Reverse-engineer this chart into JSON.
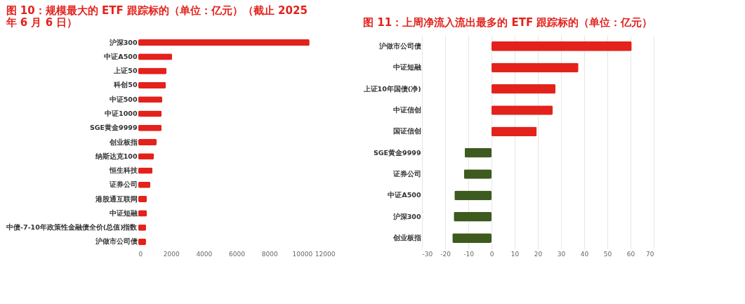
{
  "chart_data": [
    {
      "type": "bar",
      "orientation": "horizontal",
      "title": "图 10：规模最大的 ETF 跟踪标的（单位：亿元）（截止 2025 年 6 月 6 日）",
      "categories": [
        "沪深300",
        "中证A500",
        "上证50",
        "科创50",
        "中证500",
        "中证1000",
        "SGE黄金9999",
        "创业板指",
        "纳斯达克100",
        "恒生科技",
        "证券公司",
        "港股通互联网",
        "中证短融",
        "中债-7-10年政策性金融债全价(总值)指数",
        "沪做市公司债"
      ],
      "values": [
        10450,
        2060,
        1720,
        1680,
        1460,
        1420,
        1420,
        1120,
        950,
        860,
        730,
        520,
        520,
        470,
        470
      ],
      "color": "#e3221c",
      "xlim": [
        0,
        12000
      ],
      "xticks": [
        0,
        2000,
        4000,
        6000,
        8000,
        10000,
        12000
      ],
      "grid": false
    },
    {
      "type": "bar",
      "orientation": "horizontal",
      "title": "图 11：上周净流入流出最多的 ETF 跟踪标的（单位：亿元）",
      "categories": [
        "沪做市公司债",
        "中证短融",
        "上证10年国债(净)",
        "中证信创",
        "国证信创",
        "SGE黄金9999",
        "证券公司",
        "中证A500",
        "沪深300",
        "创业板指"
      ],
      "values": [
        60.5,
        37.5,
        27.6,
        26.4,
        19.5,
        -11.6,
        -11.9,
        -16.0,
        -16.3,
        -16.9
      ],
      "colors": [
        "#e3221c",
        "#e3221c",
        "#e3221c",
        "#e3221c",
        "#e3221c",
        "#3d5a1f",
        "#3d5a1f",
        "#3d5a1f",
        "#3d5a1f",
        "#3d5a1f"
      ],
      "xlim": [
        -30,
        70
      ],
      "xticks": [
        -30,
        -20,
        -10,
        0,
        10,
        20,
        30,
        40,
        50,
        60,
        70
      ],
      "grid": "x"
    }
  ]
}
